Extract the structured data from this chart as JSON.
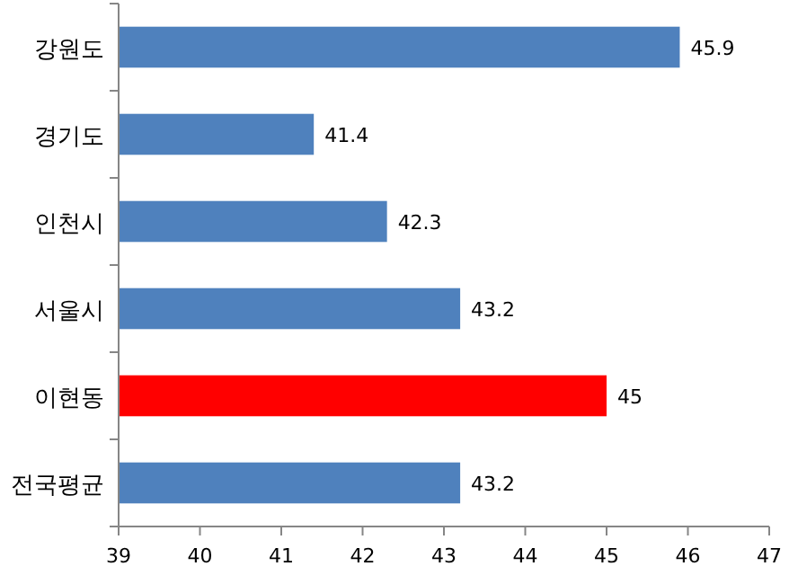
{
  "chart_data": {
    "type": "bar",
    "orientation": "horizontal",
    "categories": [
      "강원도",
      "경기도",
      "인천시",
      "서울시",
      "이현동",
      "전국평균"
    ],
    "values": [
      45.9,
      41.4,
      42.3,
      43.2,
      45,
      43.2
    ],
    "colors": [
      "#4f81bd",
      "#4f81bd",
      "#4f81bd",
      "#4f81bd",
      "#ff0000",
      "#4f81bd"
    ],
    "xlim": [
      39,
      47
    ],
    "xticks": [
      39,
      40,
      41,
      42,
      43,
      44,
      45,
      46,
      47
    ],
    "data_labels": true
  }
}
